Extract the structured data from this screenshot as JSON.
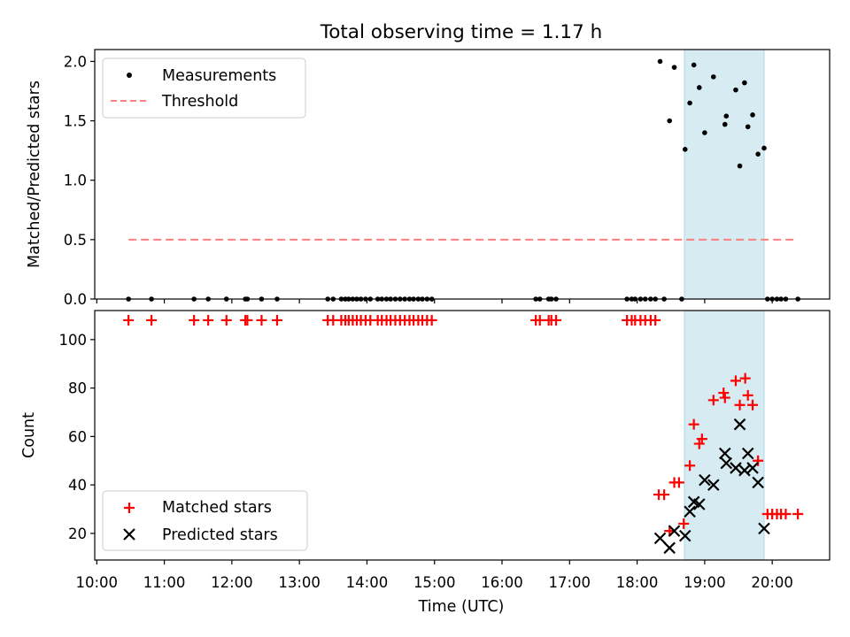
{
  "figure": {
    "title": "Total observing time = 1.17 h"
  },
  "colors": {
    "measurement": "#000000",
    "threshold": "#ff7f7f",
    "matched": "#ff0000",
    "predicted": "#000000",
    "highlight": "#add8e6"
  },
  "chart_data": [
    {
      "type": "scatter",
      "ylabel": "Matched/Predicted stars",
      "xlim": [
        9.97,
        20.85
      ],
      "ylim": [
        0.0,
        2.1
      ],
      "yticks": [
        0.0,
        0.5,
        1.0,
        1.5,
        2.0
      ],
      "ytick_labels": [
        "0.0",
        "0.5",
        "1.0",
        "1.5",
        "2.0"
      ],
      "highlight_band": [
        18.7,
        19.88
      ],
      "threshold": {
        "value": 0.5,
        "x_range": [
          10.47,
          20.38
        ],
        "style": "dashed"
      },
      "legend": {
        "position": "upper-left",
        "entries": [
          "Measurements",
          "Threshold"
        ]
      },
      "series": [
        {
          "name": "Measurements",
          "points": [
            [
              10.47,
              0
            ],
            [
              10.81,
              0
            ],
            [
              11.44,
              0
            ],
            [
              11.65,
              0
            ],
            [
              11.92,
              0
            ],
            [
              12.2,
              0
            ],
            [
              12.23,
              0
            ],
            [
              12.44,
              0
            ],
            [
              12.67,
              0
            ],
            [
              13.42,
              0
            ],
            [
              13.5,
              0
            ],
            [
              13.62,
              0
            ],
            [
              13.68,
              0
            ],
            [
              13.73,
              0
            ],
            [
              13.79,
              0
            ],
            [
              13.85,
              0
            ],
            [
              13.91,
              0
            ],
            [
              13.98,
              0
            ],
            [
              14.05,
              0
            ],
            [
              14.16,
              0
            ],
            [
              14.22,
              0
            ],
            [
              14.29,
              0
            ],
            [
              14.35,
              0
            ],
            [
              14.42,
              0
            ],
            [
              14.49,
              0
            ],
            [
              14.56,
              0
            ],
            [
              14.63,
              0
            ],
            [
              14.69,
              0
            ],
            [
              14.76,
              0
            ],
            [
              14.82,
              0
            ],
            [
              14.89,
              0
            ],
            [
              14.96,
              0
            ],
            [
              16.5,
              0
            ],
            [
              16.56,
              0
            ],
            [
              16.69,
              0
            ],
            [
              16.73,
              0
            ],
            [
              16.8,
              0
            ],
            [
              17.85,
              0
            ],
            [
              17.92,
              0
            ],
            [
              17.97,
              0
            ],
            [
              18.05,
              0
            ],
            [
              18.12,
              0
            ],
            [
              18.2,
              0
            ],
            [
              18.27,
              0
            ],
            [
              18.4,
              0
            ],
            [
              18.66,
              0
            ],
            [
              19.93,
              0
            ],
            [
              20.0,
              0
            ],
            [
              20.07,
              0
            ],
            [
              20.13,
              0
            ],
            [
              20.2,
              0
            ],
            [
              20.38,
              0
            ],
            [
              18.34,
              2.0
            ],
            [
              18.48,
              1.5
            ],
            [
              18.55,
              1.95
            ],
            [
              18.71,
              1.26
            ],
            [
              18.78,
              1.65
            ],
            [
              18.84,
              1.97
            ],
            [
              18.92,
              1.78
            ],
            [
              19.0,
              1.4
            ],
            [
              19.13,
              1.87
            ],
            [
              19.3,
              1.47
            ],
            [
              19.32,
              1.54
            ],
            [
              19.46,
              1.76
            ],
            [
              19.52,
              1.12
            ],
            [
              19.59,
              1.82
            ],
            [
              19.64,
              1.45
            ],
            [
              19.71,
              1.55
            ],
            [
              19.79,
              1.22
            ],
            [
              19.88,
              1.27
            ]
          ]
        }
      ]
    },
    {
      "type": "scatter",
      "xlabel": "Time (UTC)",
      "ylabel": "Count",
      "xlim": [
        9.97,
        20.85
      ],
      "ylim": [
        9,
        112
      ],
      "xticks": [
        10,
        11,
        12,
        13,
        14,
        15,
        16,
        17,
        18,
        19,
        20
      ],
      "xtick_labels": [
        "10:00",
        "11:00",
        "12:00",
        "13:00",
        "14:00",
        "15:00",
        "16:00",
        "17:00",
        "18:00",
        "19:00",
        "20:00"
      ],
      "yticks": [
        20,
        40,
        60,
        80,
        100
      ],
      "ytick_labels": [
        "20",
        "40",
        "60",
        "80",
        "100"
      ],
      "highlight_band": [
        18.7,
        19.88
      ],
      "legend": {
        "position": "lower-left",
        "entries": [
          "Matched stars",
          "Predicted stars"
        ]
      },
      "series": [
        {
          "name": "Matched stars",
          "marker": "plus",
          "points": [
            [
              10.47,
              108
            ],
            [
              10.81,
              108
            ],
            [
              11.44,
              108
            ],
            [
              11.65,
              108
            ],
            [
              11.92,
              108
            ],
            [
              12.2,
              108
            ],
            [
              12.23,
              108
            ],
            [
              12.44,
              108
            ],
            [
              12.67,
              108
            ],
            [
              13.42,
              108
            ],
            [
              13.5,
              108
            ],
            [
              13.62,
              108
            ],
            [
              13.68,
              108
            ],
            [
              13.73,
              108
            ],
            [
              13.79,
              108
            ],
            [
              13.85,
              108
            ],
            [
              13.91,
              108
            ],
            [
              13.98,
              108
            ],
            [
              14.05,
              108
            ],
            [
              14.16,
              108
            ],
            [
              14.22,
              108
            ],
            [
              14.29,
              108
            ],
            [
              14.35,
              108
            ],
            [
              14.42,
              108
            ],
            [
              14.49,
              108
            ],
            [
              14.56,
              108
            ],
            [
              14.63,
              108
            ],
            [
              14.69,
              108
            ],
            [
              14.76,
              108
            ],
            [
              14.82,
              108
            ],
            [
              14.89,
              108
            ],
            [
              14.96,
              108
            ],
            [
              16.5,
              108
            ],
            [
              16.56,
              108
            ],
            [
              16.69,
              108
            ],
            [
              16.73,
              108
            ],
            [
              16.8,
              108
            ],
            [
              17.85,
              108
            ],
            [
              17.92,
              108
            ],
            [
              17.97,
              108
            ],
            [
              18.05,
              108
            ],
            [
              18.12,
              108
            ],
            [
              18.2,
              108
            ],
            [
              18.27,
              108
            ],
            [
              18.32,
              36
            ],
            [
              18.4,
              36
            ],
            [
              18.48,
              21
            ],
            [
              18.55,
              41
            ],
            [
              18.62,
              41
            ],
            [
              18.69,
              24
            ],
            [
              18.78,
              48
            ],
            [
              18.84,
              65
            ],
            [
              18.92,
              57
            ],
            [
              18.96,
              59
            ],
            [
              19.13,
              75
            ],
            [
              19.28,
              78
            ],
            [
              19.3,
              76
            ],
            [
              19.46,
              83
            ],
            [
              19.52,
              73
            ],
            [
              19.6,
              84
            ],
            [
              19.64,
              77
            ],
            [
              19.71,
              73
            ],
            [
              19.79,
              50
            ],
            [
              19.93,
              28
            ],
            [
              20.0,
              28
            ],
            [
              20.07,
              28
            ],
            [
              20.13,
              28
            ],
            [
              20.2,
              28
            ],
            [
              20.38,
              28
            ]
          ]
        },
        {
          "name": "Predicted stars",
          "marker": "x",
          "points": [
            [
              18.34,
              18
            ],
            [
              18.48,
              14
            ],
            [
              18.55,
              21
            ],
            [
              18.71,
              19
            ],
            [
              18.78,
              29
            ],
            [
              18.84,
              33
            ],
            [
              18.92,
              32
            ],
            [
              19.0,
              42
            ],
            [
              19.13,
              40
            ],
            [
              19.3,
              53
            ],
            [
              19.32,
              49
            ],
            [
              19.46,
              47
            ],
            [
              19.52,
              65
            ],
            [
              19.59,
              46
            ],
            [
              19.64,
              53
            ],
            [
              19.71,
              47
            ],
            [
              19.79,
              41
            ],
            [
              19.88,
              22
            ]
          ]
        }
      ]
    }
  ]
}
